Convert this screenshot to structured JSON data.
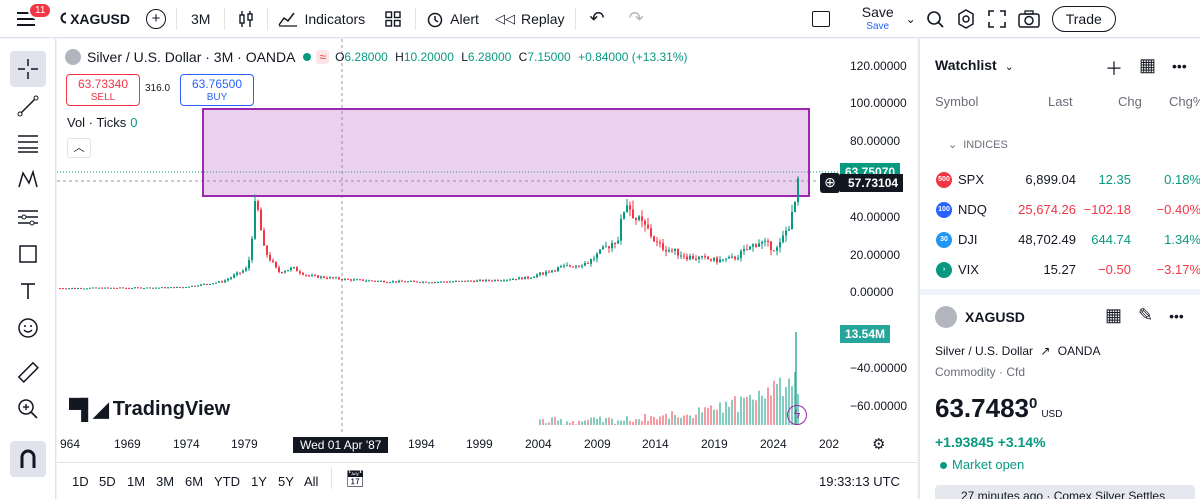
{
  "topbar": {
    "notification_count": "11",
    "symbol": "XAGUSD",
    "interval": "3M",
    "indicators_label": "Indicators",
    "alert_label": "Alert",
    "replay_label": "Replay",
    "save_label": "Save",
    "save_sub": "Save",
    "trade_label": "Trade"
  },
  "legend": {
    "title": "Silver / U.S. Dollar · 3M · OANDA",
    "o_label": "O",
    "o_value": "6.28000",
    "h_label": "H",
    "h_value": "10.20000",
    "l_label": "L",
    "l_value": "6.28000",
    "c_label": "C",
    "c_value": "7.15000",
    "change": "+0.84000 (+13.31%)"
  },
  "trade_buttons": {
    "sell_price": "63.73340",
    "sell_label": "SELL",
    "spread": "316.0",
    "buy_price": "63.76500",
    "buy_label": "BUY"
  },
  "volume_legend": {
    "label": "Vol · Ticks",
    "value": "0"
  },
  "price_axis": [
    "120.00000",
    "100.00000",
    "80.00000",
    "40.00000",
    "20.00000",
    "0.00000",
    "−40.00000",
    "−60.00000"
  ],
  "price_tags": {
    "current": "63.75070",
    "crosshair": "57.73104",
    "volume": "13.54M"
  },
  "date_axis": {
    "labels": [
      "964",
      "1969",
      "1974",
      "1979",
      "1994",
      "1999",
      "2004",
      "2009",
      "2014",
      "2019",
      "2024",
      "202"
    ],
    "crosshair_date": "Wed 01 Apr '87"
  },
  "range_buttons": [
    "1D",
    "5D",
    "1M",
    "3M",
    "6M",
    "YTD",
    "1Y",
    "5Y",
    "All"
  ],
  "clock": "19:33:13 UTC",
  "logo_text": "TradingView",
  "watchlist": {
    "title": "Watchlist",
    "columns": {
      "symbol": "Symbol",
      "last": "Last",
      "chg": "Chg",
      "chgp": "Chg%"
    },
    "group": "INDICES",
    "rows": [
      {
        "badge": "500",
        "badge_color": "#f23645",
        "symbol": "SPX",
        "last": "6,899.04",
        "chg": "12.35",
        "chgp": "0.18%",
        "dir": "up"
      },
      {
        "badge": "100",
        "badge_color": "#2962ff",
        "symbol": "NDQ",
        "last": "25,674.26",
        "chg": "−102.18",
        "chgp": "−0.40%",
        "dir": "down"
      },
      {
        "badge": "30",
        "badge_color": "#2196f3",
        "symbol": "DJI",
        "last": "48,702.49",
        "chg": "644.74",
        "chgp": "1.34%",
        "dir": "up"
      },
      {
        "badge": "›",
        "badge_color": "#089981",
        "symbol": "VIX",
        "last": "15.27",
        "chg": "−0.50",
        "chgp": "−3.17%",
        "dir": "down"
      }
    ]
  },
  "details": {
    "symbol": "XAGUSD",
    "description": "Silver / U.S. Dollar",
    "exchange": "OANDA",
    "meta": "Commodity · Cfd",
    "price_main": "63.7483",
    "price_sup": "0",
    "currency": "USD",
    "change": "+1.93845 +3.14%",
    "market_status": "Market open",
    "news": "27 minutes ago · Comex Silver Settles"
  }
}
